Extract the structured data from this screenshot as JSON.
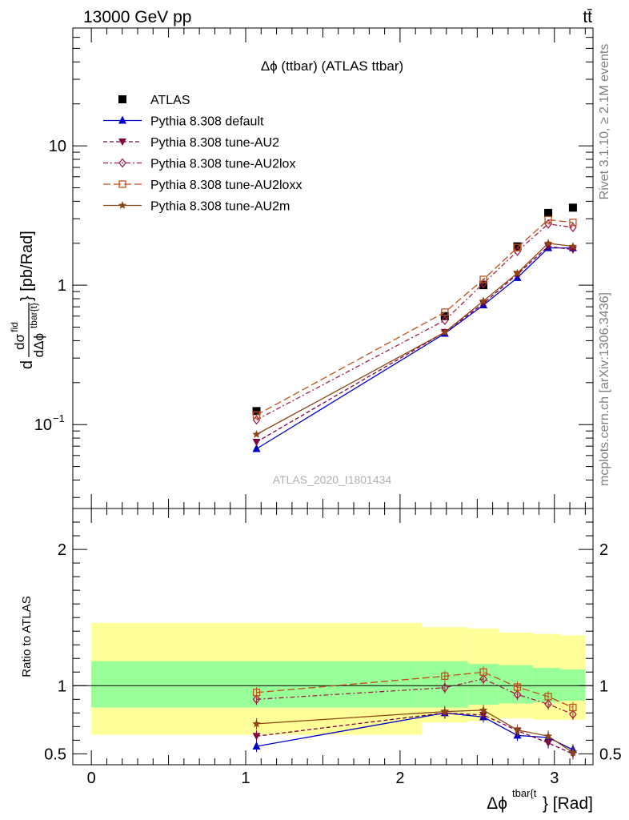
{
  "header": {
    "energy_label": "13000 GeV pp",
    "process_label": "tt̄"
  },
  "side": {
    "rivet_label": "Rivet 3.1.10, ≥ 2.1M events",
    "mcplots_label": "mcplots.cern.ch [arXiv:1306.3436]"
  },
  "watermark": "ATLAS_2020_I1801434",
  "colors": {
    "atlas": "#000000",
    "default": "#0000cc",
    "au2": "#800040",
    "au2lox": "#a0204a",
    "au2loxx": "#c0501a",
    "au2m": "#8b4513",
    "band_outer": "#ffff99",
    "band_inner": "#99ff99"
  },
  "chart_data": [
    {
      "type": "line",
      "title": "Δϕ (ttbar) (ATLAS ttbar)",
      "ylabel": "dσ^fid/dΔϕ^tbar{t} [pb/Rad]",
      "ylabel_parts": {
        "d1": "d",
        "sigma": "dσ",
        "sup": "fid",
        "den": "dΔϕ",
        "sub": "tbar{t}",
        "unit": "} [pb/Rad]"
      },
      "yscale": "log",
      "xlim": [
        -0.12,
        3.25
      ],
      "ylim": [
        0.025,
        70
      ],
      "yticks": [
        {
          "value": 0.1,
          "base": "10",
          "exp": "−1"
        },
        {
          "value": 1,
          "label": "1"
        },
        {
          "value": 10,
          "label": "10"
        }
      ],
      "x": [
        1.07,
        2.29,
        2.54,
        2.76,
        2.96,
        3.12
      ],
      "series": [
        {
          "name": "ATLAS",
          "marker": "square",
          "values": [
            0.125,
            0.6,
            1.0,
            1.9,
            3.3,
            3.6
          ]
        },
        {
          "name": "Pythia 8.308 default",
          "marker": "triangle-up",
          "line": "solid",
          "values": [
            0.067,
            0.45,
            0.72,
            1.13,
            1.85,
            1.85
          ]
        },
        {
          "name": "Pythia 8.308 tune-AU2",
          "marker": "triangle-down",
          "line": "dash",
          "values": [
            0.075,
            0.46,
            0.74,
            1.2,
            1.9,
            1.8
          ]
        },
        {
          "name": "Pythia 8.308 tune-AU2lox",
          "marker": "diamond-open",
          "line": "dashdot",
          "values": [
            0.108,
            0.56,
            1.03,
            1.75,
            2.75,
            2.6
          ]
        },
        {
          "name": "Pythia 8.308 tune-AU2loxx",
          "marker": "square-open",
          "line": "longdash",
          "values": [
            0.117,
            0.64,
            1.1,
            1.86,
            2.95,
            2.82
          ]
        },
        {
          "name": "Pythia 8.308 tune-AU2m",
          "marker": "star",
          "line": "solid",
          "values": [
            0.085,
            0.46,
            0.77,
            1.22,
            2.0,
            1.9
          ]
        }
      ]
    },
    {
      "type": "line",
      "ylabel": "Ratio to ATLAS",
      "xlabel": "Δϕ^tbar{t}} [Rad]",
      "xlabel_parts": {
        "main": "Δϕ",
        "sup": "tbar{t",
        "unit": "} [Rad]"
      },
      "xlim": [
        -0.12,
        3.25
      ],
      "ylim": [
        0.42,
        2.3
      ],
      "xticks": [
        0,
        1,
        2,
        3
      ],
      "yticks": [
        0.5,
        1,
        2
      ],
      "reference": 1,
      "bands": [
        {
          "from": 0,
          "to": 2.14,
          "outer": [
            0.64,
            1.46
          ],
          "inner": [
            0.84,
            1.18
          ]
        },
        {
          "from": 2.14,
          "to": 2.44,
          "outer": [
            0.73,
            1.43
          ],
          "inner": [
            0.84,
            1.18
          ]
        },
        {
          "from": 2.44,
          "to": 2.64,
          "outer": [
            0.74,
            1.42
          ],
          "inner": [
            0.86,
            1.16
          ]
        },
        {
          "from": 2.64,
          "to": 2.86,
          "outer": [
            0.76,
            1.39
          ],
          "inner": [
            0.87,
            1.15
          ]
        },
        {
          "from": 2.86,
          "to": 3.04,
          "outer": [
            0.75,
            1.38
          ],
          "inner": [
            0.88,
            1.13
          ]
        },
        {
          "from": 3.04,
          "to": 3.2,
          "outer": [
            0.75,
            1.37
          ],
          "inner": [
            0.89,
            1.12
          ]
        }
      ],
      "x": [
        1.07,
        2.29,
        2.54,
        2.76,
        2.96,
        3.12
      ],
      "series": [
        {
          "name": "Pythia 8.308 default",
          "values": [
            0.555,
            0.8,
            0.77,
            0.635,
            0.62,
            0.53
          ]
        },
        {
          "name": "Pythia 8.308 tune-AU2",
          "values": [
            0.63,
            0.8,
            0.785,
            0.67,
            0.58,
            0.5
          ]
        },
        {
          "name": "Pythia 8.308 tune-AU2lox",
          "values": [
            0.9,
            0.985,
            1.05,
            0.935,
            0.865,
            0.79
          ]
        },
        {
          "name": "Pythia 8.308 tune-AU2loxx",
          "values": [
            0.95,
            1.07,
            1.1,
            0.99,
            0.92,
            0.84
          ]
        },
        {
          "name": "Pythia 8.308 tune-AU2m",
          "values": [
            0.72,
            0.81,
            0.82,
            0.675,
            0.63,
            0.51
          ]
        }
      ]
    }
  ]
}
